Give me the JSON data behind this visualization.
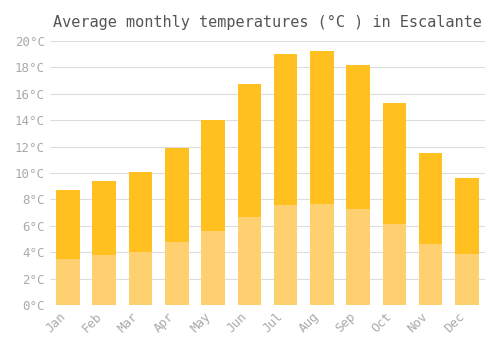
{
  "title": "Average monthly temperatures (°C ) in Escalante",
  "months": [
    "Jan",
    "Feb",
    "Mar",
    "Apr",
    "May",
    "Jun",
    "Jul",
    "Aug",
    "Sep",
    "Oct",
    "Nov",
    "Dec"
  ],
  "values": [
    8.7,
    9.4,
    10.1,
    11.9,
    14.0,
    16.7,
    19.0,
    19.2,
    18.2,
    15.3,
    11.5,
    9.6
  ],
  "bar_color_top": "#FFC020",
  "bar_color_bottom": "#FFD070",
  "ylim": [
    0,
    20
  ],
  "ytick_step": 2,
  "background_color": "#FFFFFF",
  "grid_color": "#DDDDDD",
  "title_fontsize": 11,
  "tick_fontsize": 9,
  "tick_label_color": "#AAAAAA",
  "font_family": "monospace"
}
